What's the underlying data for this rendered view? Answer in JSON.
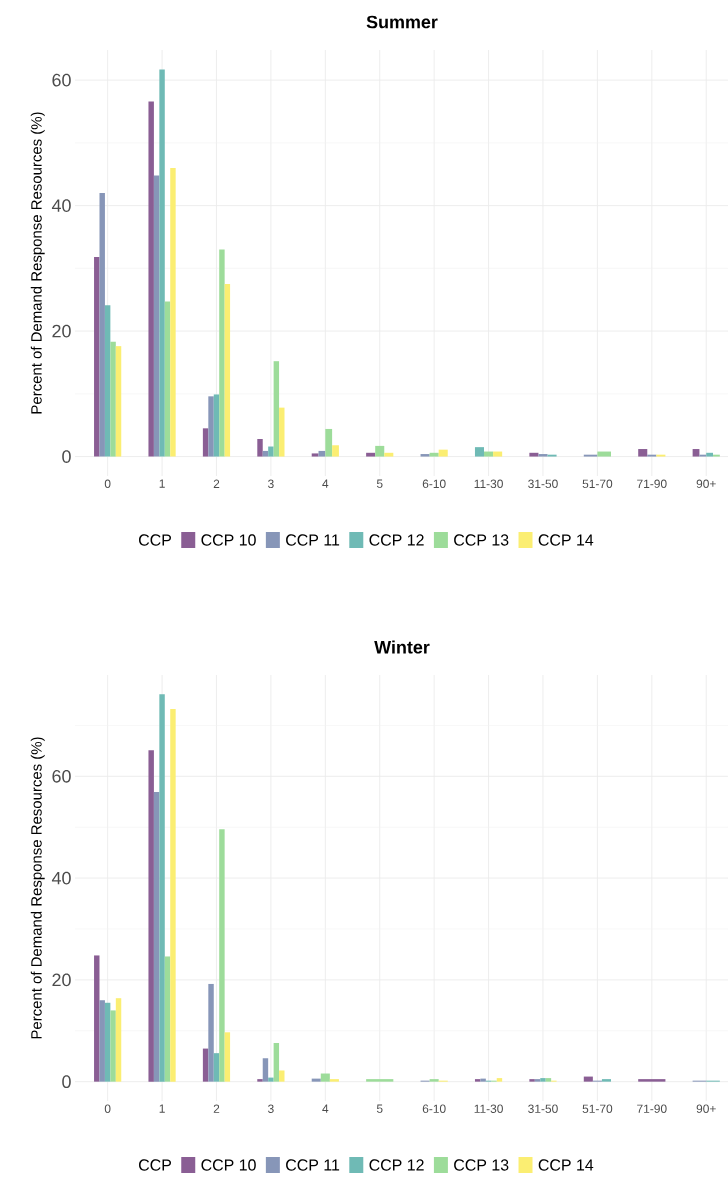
{
  "chart_data": [
    {
      "type": "bar",
      "title": "Summer",
      "ylabel": "Percent of Demand Response Resources (%)",
      "legend_title": "CCP",
      "legend": "bottom",
      "grid": true,
      "categories": [
        "0",
        "1",
        "2",
        "3",
        "4",
        "5",
        "6-10",
        "11-30",
        "31-50",
        "51-70",
        "71-90",
        "90+"
      ],
      "ylim": [
        -3.1,
        64.8
      ],
      "yticks": [
        0,
        {
          "value": 10,
          "label": null
        },
        20,
        {
          "value": 30,
          "label": null
        },
        40,
        {
          "value": 50,
          "label": null
        },
        60
      ],
      "series": [
        {
          "name": "CCP 10",
          "color": "#8a5e94",
          "values": [
            31.8,
            56.6,
            4.5,
            2.8,
            0.5,
            0.6,
            null,
            null,
            0.6,
            null,
            1.2,
            1.2
          ]
        },
        {
          "name": "CCP 11",
          "color": "#8796b8",
          "values": [
            42.0,
            44.8,
            9.6,
            0.9,
            0.9,
            null,
            0.4,
            null,
            0.4,
            0.3,
            0.3,
            0.3
          ]
        },
        {
          "name": "CCP 12",
          "color": "#6fbab5",
          "values": [
            24.1,
            61.7,
            9.9,
            1.6,
            null,
            null,
            null,
            1.5,
            0.3,
            null,
            null,
            0.6
          ]
        },
        {
          "name": "CCP 13",
          "color": "#9ddc9a",
          "values": [
            18.3,
            24.7,
            33.0,
            15.2,
            4.4,
            1.7,
            0.6,
            0.8,
            null,
            0.8,
            null,
            0.3
          ]
        },
        {
          "name": "CCP 14",
          "color": "#fbee72",
          "values": [
            17.6,
            46.0,
            27.5,
            7.8,
            1.8,
            0.6,
            1.1,
            0.8,
            null,
            null,
            0.3,
            null
          ]
        }
      ]
    },
    {
      "type": "bar",
      "title": "Winter",
      "ylabel": "Percent of Demand Response Resources (%)",
      "legend_title": "CCP",
      "legend": "bottom",
      "grid": true,
      "categories": [
        "0",
        "1",
        "2",
        "3",
        "4",
        "5",
        "6-10",
        "11-30",
        "31-50",
        "51-70",
        "71-90",
        "90+"
      ],
      "ylim": [
        -3.8,
        79.9
      ],
      "yticks": [
        0,
        {
          "value": 10,
          "label": null
        },
        20,
        {
          "value": 30,
          "label": null
        },
        40,
        {
          "value": 50,
          "label": null
        },
        60,
        {
          "value": 70,
          "label": null
        }
      ],
      "series": [
        {
          "name": "CCP 10",
          "color": "#8a5e94",
          "values": [
            24.8,
            65.1,
            6.5,
            0.5,
            null,
            null,
            null,
            0.5,
            0.5,
            1.0,
            0.5,
            null
          ]
        },
        {
          "name": "CCP 11",
          "color": "#8796b8",
          "values": [
            16.0,
            56.9,
            19.2,
            4.6,
            0.6,
            null,
            0.2,
            0.6,
            0.5,
            0.2,
            null,
            0.2
          ]
        },
        {
          "name": "CCP 12",
          "color": "#6fbab5",
          "values": [
            15.5,
            76.1,
            5.6,
            0.8,
            null,
            null,
            null,
            0.2,
            0.7,
            0.5,
            null,
            0.2
          ]
        },
        {
          "name": "CCP 13",
          "color": "#9ddc9a",
          "values": [
            14.0,
            24.6,
            49.6,
            7.6,
            1.6,
            0.5,
            0.5,
            0.2,
            0.7,
            null,
            null,
            null
          ]
        },
        {
          "name": "CCP 14",
          "color": "#fbee72",
          "values": [
            16.4,
            73.2,
            9.7,
            2.2,
            0.5,
            null,
            0.2,
            0.7,
            0.2,
            null,
            null,
            null
          ]
        }
      ]
    }
  ]
}
